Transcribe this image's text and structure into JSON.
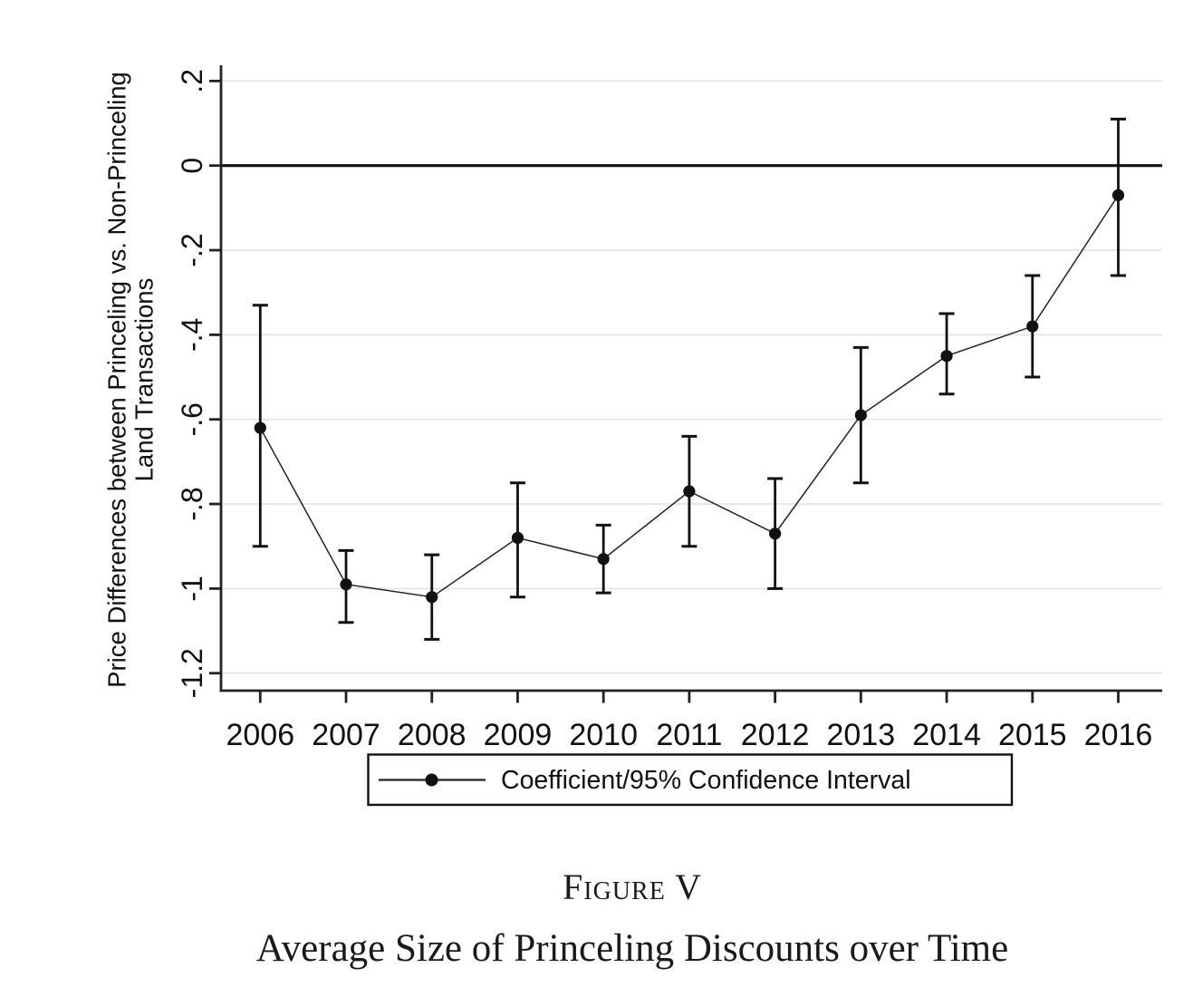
{
  "chart_data": {
    "type": "line",
    "title": "Average Size of Princeling Discounts over Time",
    "figure_label": "Figure V",
    "xlabel": "",
    "ylabel_line1": "Price Differences between Princeling vs. Non-Princeling",
    "ylabel_line2": "Land Transactions",
    "x": [
      2006,
      2007,
      2008,
      2009,
      2010,
      2011,
      2012,
      2013,
      2014,
      2015,
      2016
    ],
    "series": [
      {
        "name": "Coefficient/95% Confidence Interval",
        "values": [
          -0.62,
          -0.99,
          -1.02,
          -0.88,
          -0.93,
          -0.77,
          -0.87,
          -0.59,
          -0.45,
          -0.38,
          -0.07
        ],
        "ci_high": [
          -0.33,
          -0.91,
          -0.92,
          -0.75,
          -0.85,
          -0.64,
          -0.74,
          -0.43,
          -0.35,
          -0.26,
          0.11
        ],
        "ci_low": [
          -0.9,
          -1.08,
          -1.12,
          -1.02,
          -1.01,
          -0.9,
          -1.0,
          -0.75,
          -0.54,
          -0.5,
          -0.26
        ]
      }
    ],
    "yticks": {
      "values": [
        0.2,
        0,
        -0.2,
        -0.4,
        -0.6,
        -0.8,
        -1.0,
        -1.2
      ],
      "labels": [
        ".2",
        "0",
        "-.2",
        "-.4",
        "-.6",
        "-.8",
        "-1",
        "-1.2"
      ]
    },
    "ylim": [
      -1.24,
      0.237
    ],
    "zero_reference_line": true,
    "grid": "horizontal",
    "legend_position": "bottom-center",
    "legend_label": "Coefficient/95% Confidence Interval",
    "colors": {
      "data": "#111111",
      "axis": "#222222",
      "grid": "#e3e3e3",
      "background": "#ffffff"
    }
  }
}
